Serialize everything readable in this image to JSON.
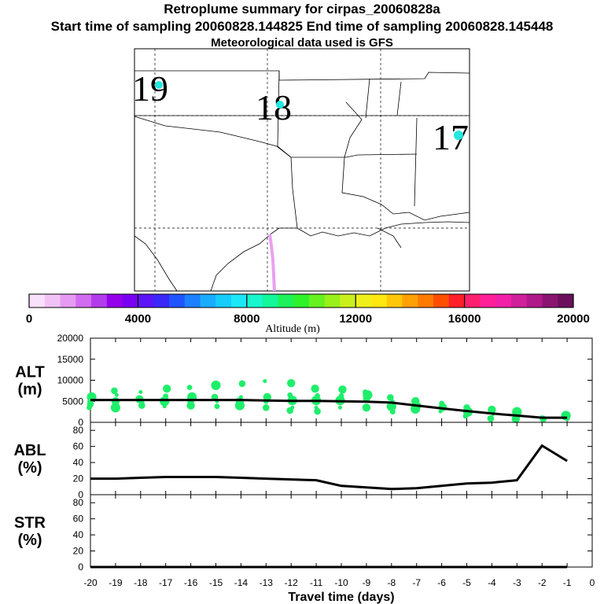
{
  "header": {
    "title": "Retroplume summary for cirpas_20060828a",
    "sampling_line": "Start time of sampling 20060828.144825     End time of sampling 20060828.145448",
    "met_line": "Meteorological data used is GFS"
  },
  "map": {
    "day_labels": [
      {
        "text": "19",
        "color": "#22e8e0"
      },
      {
        "text": "18",
        "color": "#22e8e0"
      },
      {
        "text": "17",
        "color": "#22e8e0"
      }
    ],
    "plume_color": "#e9a0f0"
  },
  "colorbar": {
    "ticks": [
      "0",
      "4000",
      "8000",
      "12000",
      "16000",
      "20000"
    ],
    "label": "Altitude  (m)",
    "colors": [
      "#f9e0fb",
      "#f2c2f6",
      "#e59bf2",
      "#d16cf0",
      "#b23bec",
      "#9400ea",
      "#7a00f2",
      "#5a14f7",
      "#3a28f8",
      "#1f55ff",
      "#1c80ff",
      "#19acfd",
      "#16ccfb",
      "#1ae8f7",
      "#16f7cd",
      "#14f79a",
      "#1df25a",
      "#2ef22a",
      "#66f21e",
      "#99f01a",
      "#c9f01a",
      "#eff019",
      "#ffe80f",
      "#ffc70a",
      "#ffa005",
      "#ff7a00",
      "#ff4e00",
      "#ff1f2a",
      "#ff1f6e",
      "#ff1f98",
      "#f21fa8",
      "#d01f9a",
      "#b0198a",
      "#8a1470",
      "#6b0f5c"
    ]
  },
  "chart_data": [
    {
      "type": "line",
      "name": "altitude",
      "ylabel": "ALT\n(m)",
      "xlim": [
        -20,
        0
      ],
      "ylim": [
        0,
        20000
      ],
      "yticks": [
        "20000",
        "15000",
        "10000",
        "5000",
        "0"
      ],
      "series": [
        {
          "name": "mean altitude",
          "x": [
            -20,
            -19,
            -18,
            -17,
            -16,
            -15,
            -14,
            -13,
            -12,
            -11,
            -10,
            -9,
            -8,
            -7,
            -6,
            -5,
            -4,
            -3,
            -2,
            -1
          ],
          "y": [
            5300,
            5300,
            5300,
            5300,
            5300,
            5300,
            5300,
            5200,
            5100,
            5100,
            5000,
            4900,
            4700,
            4000,
            3300,
            2700,
            2100,
            1600,
            1100,
            1100
          ]
        }
      ],
      "dots_color": "#1fee6a",
      "dots": [
        [
          -20,
          5000
        ],
        [
          -20,
          4300
        ],
        [
          -20,
          6000
        ],
        [
          -20,
          3500
        ],
        [
          -19,
          5000
        ],
        [
          -19,
          6500
        ],
        [
          -19,
          7500
        ],
        [
          -19,
          3500
        ],
        [
          -18,
          4800
        ],
        [
          -18,
          5500
        ],
        [
          -18,
          7200
        ],
        [
          -18,
          4000
        ],
        [
          -17,
          5000
        ],
        [
          -17,
          6200
        ],
        [
          -17,
          8000
        ],
        [
          -17,
          3800
        ],
        [
          -16,
          5000
        ],
        [
          -16,
          6000
        ],
        [
          -16,
          8300
        ],
        [
          -16,
          4000
        ],
        [
          -15,
          5000
        ],
        [
          -15,
          6000
        ],
        [
          -15,
          8800
        ],
        [
          -15,
          3800
        ],
        [
          -14,
          5000
        ],
        [
          -14,
          6000
        ],
        [
          -14,
          9200
        ],
        [
          -14,
          4000
        ],
        [
          -13,
          5000
        ],
        [
          -13,
          6000
        ],
        [
          -13,
          9800
        ],
        [
          -13,
          3500
        ],
        [
          -12,
          5200
        ],
        [
          -12,
          6500
        ],
        [
          -12,
          9300
        ],
        [
          -12,
          3500
        ],
        [
          -12,
          2800
        ],
        [
          -11,
          5200
        ],
        [
          -11,
          6300
        ],
        [
          -11,
          8000
        ],
        [
          -11,
          3500
        ],
        [
          -11,
          2600
        ],
        [
          -10,
          5200
        ],
        [
          -10,
          6300
        ],
        [
          -10,
          7800
        ],
        [
          -10,
          3500
        ],
        [
          -9,
          5500
        ],
        [
          -9,
          6500
        ],
        [
          -9,
          7200
        ],
        [
          -9,
          3500
        ],
        [
          -8,
          5000
        ],
        [
          -8,
          5900
        ],
        [
          -8,
          3800
        ],
        [
          -8,
          2500
        ],
        [
          -7,
          5000
        ],
        [
          -7,
          5500
        ],
        [
          -7,
          4000
        ],
        [
          -7,
          3200
        ],
        [
          -6,
          4500
        ],
        [
          -6,
          3600
        ],
        [
          -6,
          2600
        ],
        [
          -5,
          3500
        ],
        [
          -5,
          2500
        ],
        [
          -5,
          1500
        ],
        [
          -4,
          3000
        ],
        [
          -4,
          2000
        ],
        [
          -4,
          900
        ],
        [
          -3,
          2500
        ],
        [
          -3,
          1600
        ],
        [
          -3,
          800
        ],
        [
          -2,
          1200
        ],
        [
          -2,
          800
        ],
        [
          -1,
          1600
        ],
        [
          -1,
          900
        ]
      ]
    },
    {
      "type": "line",
      "name": "abl",
      "ylabel": "ABL\n(%)",
      "xlim": [
        -20,
        0
      ],
      "ylim": [
        0,
        90
      ],
      "yticks": [
        "80",
        "60",
        "40",
        "20",
        "0"
      ],
      "series": [
        {
          "name": "ABL fraction",
          "x": [
            -20,
            -19,
            -18,
            -17,
            -16,
            -15,
            -14,
            -13,
            -12,
            -11,
            -10,
            -9,
            -8,
            -7,
            -6,
            -5,
            -4,
            -3,
            -2,
            -1
          ],
          "y": [
            20,
            20,
            21,
            22,
            22,
            22,
            21,
            20,
            19,
            18,
            11,
            9,
            7,
            8,
            11,
            14,
            15,
            18,
            61,
            42
          ]
        }
      ]
    },
    {
      "type": "line",
      "name": "str",
      "ylabel": "STR\n(%)",
      "xlim": [
        -20,
        0
      ],
      "ylim": [
        0,
        90
      ],
      "yticks": [
        "80",
        "60",
        "40",
        "20",
        "0"
      ],
      "series": [
        {
          "name": "stratospheric fraction",
          "x": [
            -20,
            -19,
            -18,
            -17,
            -16,
            -15,
            -14,
            -13,
            -12,
            -11,
            -10,
            -9,
            -8,
            -7,
            -6,
            -5,
            -4,
            -3,
            -2,
            -1
          ],
          "y": [
            0,
            0,
            0,
            0,
            0,
            0,
            0,
            0,
            0,
            0,
            0,
            0,
            0,
            0,
            0,
            0,
            0,
            0,
            0,
            0
          ]
        }
      ]
    }
  ],
  "xaxis": {
    "ticks": [
      "-20",
      "-19",
      "-18",
      "-17",
      "-16",
      "-15",
      "-14",
      "-13",
      "-12",
      "-11",
      "-10",
      "-9",
      "-8",
      "-7",
      "-6",
      "-5",
      "-4",
      "-3",
      "-2",
      "-1",
      "0"
    ],
    "label": "Travel time (days)"
  }
}
